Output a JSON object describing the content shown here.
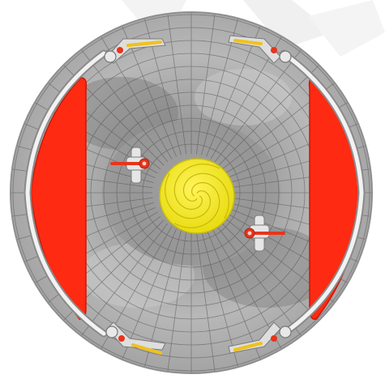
{
  "scene": {
    "kind": "top-down circular arena board",
    "colors": {
      "background": "#ffffff",
      "shadow": "#e6e6e6",
      "floor_light": "#c9c9c9",
      "floor_mid": "#a9a9a9",
      "floor_dark": "#7d7d7d",
      "grid_line": "#5e5e5e",
      "wall_panel": "#ff2a12",
      "wall_panel_edge": "#d81a08",
      "center_disc": "#f5ec17",
      "center_disc_edge": "#cbbd10",
      "rail": "#e8e8e8",
      "rail_edge": "#9a9a9a",
      "lever_red": "#e8341c",
      "bracket_yellow": "#f0c21a",
      "bracket_metal": "#dcdcdc"
    },
    "objects": {
      "center_spiral": "spiral-disc",
      "wall_panels": [
        "left-red-panel",
        "right-red-panel"
      ],
      "rails": [
        "left-guard-rail",
        "right-guard-rail"
      ],
      "levers": [
        "lever-upper-left",
        "lever-lower-right"
      ],
      "brackets": [
        "bracket-top-left",
        "bracket-top-right",
        "bracket-bottom-left",
        "bracket-bottom-right"
      ]
    }
  }
}
